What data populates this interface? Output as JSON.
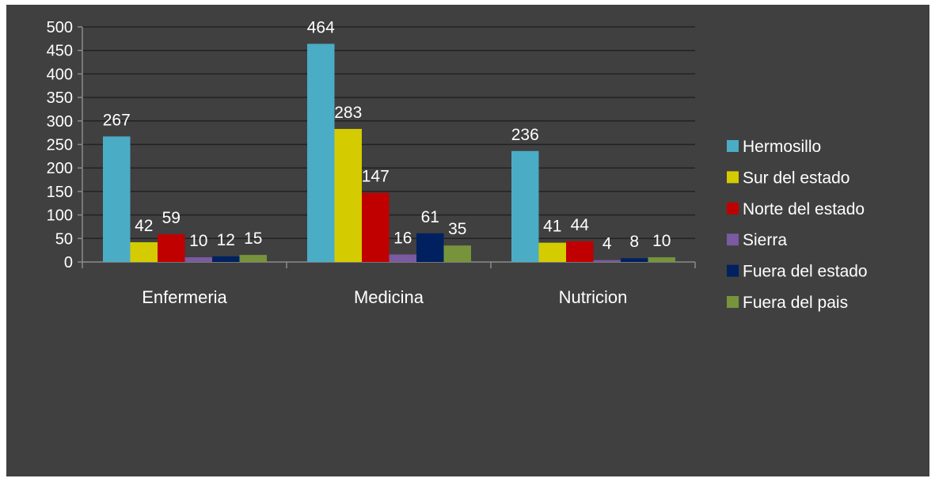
{
  "chart_data": {
    "type": "bar",
    "title": "",
    "xlabel": "",
    "ylabel": "",
    "ylim": [
      0,
      500
    ],
    "yticks": [
      0,
      50,
      100,
      150,
      200,
      250,
      300,
      350,
      400,
      450,
      500
    ],
    "grid": true,
    "legend_position": "right",
    "categories": [
      "Enfermeria",
      "Medicina",
      "Nutricion"
    ],
    "series": [
      {
        "name": "Hermosillo",
        "color": "#4bacc6",
        "values": [
          267,
          464,
          236
        ]
      },
      {
        "name": "Sur del estado",
        "color": "#d4cc00",
        "values": [
          42,
          283,
          41
        ]
      },
      {
        "name": "Norte del estado",
        "color": "#c00000",
        "values": [
          59,
          147,
          44
        ]
      },
      {
        "name": "Sierra",
        "color": "#7a5aa0",
        "values": [
          10,
          16,
          4
        ]
      },
      {
        "name": "Fuera del estado",
        "color": "#002060",
        "values": [
          12,
          61,
          8
        ]
      },
      {
        "name": "Fuera del pais",
        "color": "#77933c",
        "values": [
          15,
          35,
          10
        ]
      }
    ]
  },
  "colors": {
    "background": "#404040",
    "gridline": "#222222",
    "text": "#ffffff"
  }
}
